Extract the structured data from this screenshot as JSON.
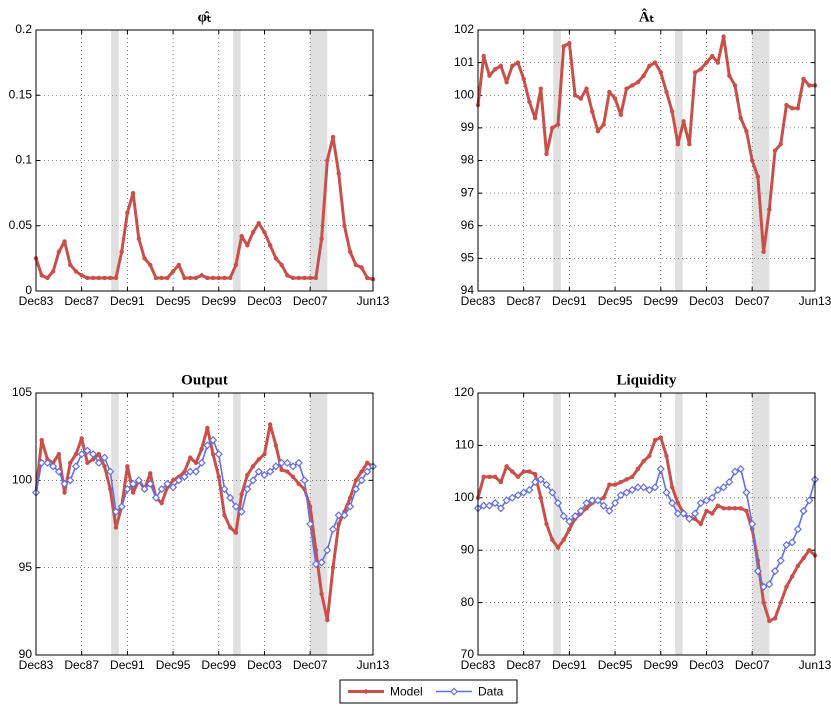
{
  "chart_data": [
    {
      "type": "line",
      "title": "φ̂ₜ",
      "color": "#c8504a",
      "marker": "dot",
      "x": [
        1983.917,
        1984.417,
        1984.917,
        1985.417,
        1985.917,
        1986.417,
        1986.917,
        1987.417,
        1987.917,
        1988.417,
        1988.917,
        1989.417,
        1989.917,
        1990.417,
        1990.917,
        1991.417,
        1991.917,
        1992.417,
        1992.917,
        1993.417,
        1993.917,
        1994.417,
        1994.917,
        1995.417,
        1995.917,
        1996.417,
        1996.917,
        1997.417,
        1997.917,
        1998.417,
        1998.917,
        1999.417,
        1999.917,
        2000.417,
        2000.917,
        2001.417,
        2001.917,
        2002.417,
        2002.917,
        2003.417,
        2003.917,
        2004.417,
        2004.917,
        2005.417,
        2005.917,
        2006.417,
        2006.917,
        2007.417,
        2007.917,
        2008.417,
        2008.917,
        2009.417,
        2009.917,
        2010.417,
        2010.917,
        2011.417,
        2011.917,
        2012.417,
        2012.917,
        2013.417
      ],
      "values": [
        0.025,
        0.012,
        0.01,
        0.015,
        0.03,
        0.038,
        0.02,
        0.015,
        0.012,
        0.01,
        0.01,
        0.01,
        0.01,
        0.01,
        0.01,
        0.03,
        0.06,
        0.075,
        0.04,
        0.025,
        0.02,
        0.01,
        0.01,
        0.01,
        0.015,
        0.02,
        0.01,
        0.01,
        0.01,
        0.012,
        0.01,
        0.01,
        0.01,
        0.01,
        0.01,
        0.02,
        0.042,
        0.035,
        0.045,
        0.052,
        0.045,
        0.035,
        0.025,
        0.02,
        0.012,
        0.01,
        0.01,
        0.01,
        0.01,
        0.01,
        0.04,
        0.1,
        0.118,
        0.09,
        0.05,
        0.03,
        0.02,
        0.018,
        0.01,
        0.009
      ],
      "xlim": [
        1983.917,
        2013.417
      ],
      "xticks": [
        {
          "value": 1983.917,
          "label": "Dec83"
        },
        {
          "value": 1987.917,
          "label": "Dec87"
        },
        {
          "value": 1991.917,
          "label": "Dec91"
        },
        {
          "value": 1995.917,
          "label": "Dec95"
        },
        {
          "value": 1999.917,
          "label": "Dec99"
        },
        {
          "value": 2003.917,
          "label": "Dec03"
        },
        {
          "value": 2007.917,
          "label": "Dec07"
        },
        {
          "value": 2013.417,
          "label": "Jun13"
        }
      ],
      "ylim": [
        0,
        0.2
      ],
      "yticks": [
        0,
        0.05,
        0.1,
        0.15,
        0.2
      ],
      "grid": true,
      "recessions": [
        [
          1990.5,
          1991.17
        ],
        [
          2001.17,
          2001.83
        ],
        [
          2007.92,
          2009.42
        ]
      ],
      "recession_color": "#e0e0e0"
    },
    {
      "type": "line",
      "title": "Âₜ",
      "color": "#c8504a",
      "marker": "dot",
      "x": [
        1983.917,
        1984.417,
        1984.917,
        1985.417,
        1985.917,
        1986.417,
        1986.917,
        1987.417,
        1987.917,
        1988.417,
        1988.917,
        1989.417,
        1989.917,
        1990.417,
        1990.917,
        1991.417,
        1991.917,
        1992.417,
        1992.917,
        1993.417,
        1993.917,
        1994.417,
        1994.917,
        1995.417,
        1995.917,
        1996.417,
        1996.917,
        1997.417,
        1997.917,
        1998.417,
        1998.917,
        1999.417,
        1999.917,
        2000.417,
        2000.917,
        2001.417,
        2001.917,
        2002.417,
        2002.917,
        2003.417,
        2003.917,
        2004.417,
        2004.917,
        2005.417,
        2005.917,
        2006.417,
        2006.917,
        2007.417,
        2007.917,
        2008.417,
        2008.917,
        2009.417,
        2009.917,
        2010.417,
        2010.917,
        2011.417,
        2011.917,
        2012.417,
        2012.917,
        2013.417
      ],
      "values": [
        99.7,
        101.2,
        100.6,
        100.8,
        100.9,
        100.4,
        100.9,
        101.0,
        100.5,
        99.8,
        99.3,
        100.2,
        98.2,
        99.0,
        99.1,
        101.5,
        101.6,
        100.0,
        99.9,
        100.2,
        99.5,
        98.9,
        99.1,
        100.1,
        99.9,
        99.4,
        100.2,
        100.3,
        100.4,
        100.6,
        100.9,
        101.0,
        100.7,
        100.1,
        99.5,
        98.5,
        99.2,
        98.5,
        100.7,
        100.8,
        101.0,
        101.2,
        101.0,
        101.8,
        100.6,
        100.3,
        99.3,
        98.9,
        98.0,
        97.5,
        95.2,
        96.5,
        98.3,
        98.5,
        99.7,
        99.6,
        99.6,
        100.5,
        100.3,
        100.3
      ],
      "xlim": [
        1983.917,
        2013.417
      ],
      "xticks": [
        {
          "value": 1983.917,
          "label": "Dec83"
        },
        {
          "value": 1987.917,
          "label": "Dec87"
        },
        {
          "value": 1991.917,
          "label": "Dec91"
        },
        {
          "value": 1995.917,
          "label": "Dec95"
        },
        {
          "value": 1999.917,
          "label": "Dec99"
        },
        {
          "value": 2003.917,
          "label": "Dec03"
        },
        {
          "value": 2007.917,
          "label": "Dec07"
        },
        {
          "value": 2013.417,
          "label": "Jun13"
        }
      ],
      "ylim": [
        94,
        102
      ],
      "yticks": [
        94,
        95,
        96,
        97,
        98,
        99,
        100,
        101,
        102
      ],
      "grid": true,
      "recessions": [
        [
          1990.5,
          1991.17
        ],
        [
          2001.17,
          2001.83
        ],
        [
          2007.92,
          2009.42
        ]
      ],
      "recession_color": "#e0e0e0"
    },
    {
      "type": "line",
      "title": "Output",
      "x": [
        1983.917,
        1984.417,
        1984.917,
        1985.417,
        1985.917,
        1986.417,
        1986.917,
        1987.417,
        1987.917,
        1988.417,
        1988.917,
        1989.417,
        1989.917,
        1990.417,
        1990.917,
        1991.417,
        1991.917,
        1992.417,
        1992.917,
        1993.417,
        1993.917,
        1994.417,
        1994.917,
        1995.417,
        1995.917,
        1996.417,
        1996.917,
        1997.417,
        1997.917,
        1998.417,
        1998.917,
        1999.417,
        1999.917,
        2000.417,
        2000.917,
        2001.417,
        2001.917,
        2002.417,
        2002.917,
        2003.417,
        2003.917,
        2004.417,
        2004.917,
        2005.417,
        2005.917,
        2006.417,
        2006.917,
        2007.417,
        2007.917,
        2008.417,
        2008.917,
        2009.417,
        2009.917,
        2010.417,
        2010.917,
        2011.417,
        2011.917,
        2012.417,
        2012.917,
        2013.417
      ],
      "series": [
        {
          "name": "Model",
          "color": "#c8504a",
          "marker": "dot",
          "values": [
            99.3,
            102.3,
            101.2,
            101.0,
            101.5,
            99.3,
            101.0,
            101.5,
            102.4,
            101.0,
            101.2,
            101.5,
            100.8,
            99.5,
            97.3,
            98.5,
            100.8,
            99.3,
            100.0,
            99.5,
            100.4,
            99.0,
            98.7,
            99.6,
            100.0,
            100.2,
            100.5,
            101.3,
            101.0,
            101.8,
            103.0,
            101.5,
            100.2,
            98.0,
            97.3,
            97.0,
            99.2,
            100.3,
            100.8,
            101.2,
            101.5,
            103.2,
            102.0,
            100.6,
            100.5,
            100.2,
            99.8,
            99.5,
            98.5,
            96.0,
            93.5,
            92.0,
            95.0,
            97.5,
            98.2,
            99.0,
            100.0,
            100.5,
            101.0,
            100.8
          ]
        },
        {
          "name": "Data",
          "color": "#6470e0",
          "marker": "diamond",
          "values": [
            99.3,
            101.0,
            101.0,
            100.8,
            100.5,
            99.8,
            100.0,
            100.8,
            101.5,
            101.7,
            101.5,
            101.0,
            101.3,
            100.5,
            98.2,
            98.5,
            99.5,
            99.8,
            100.0,
            99.5,
            99.8,
            99.0,
            99.5,
            99.8,
            99.6,
            100.0,
            100.2,
            100.5,
            100.5,
            101.0,
            102.0,
            102.3,
            101.5,
            99.5,
            99.0,
            98.5,
            98.2,
            99.5,
            100.0,
            100.5,
            100.3,
            100.5,
            100.8,
            101.0,
            101.0,
            100.8,
            101.0,
            100.0,
            97.5,
            95.2,
            95.3,
            96.0,
            97.2,
            98.0,
            98.0,
            98.5,
            99.5,
            100.0,
            100.5,
            100.8
          ]
        }
      ],
      "xlim": [
        1983.917,
        2013.417
      ],
      "xticks": [
        {
          "value": 1983.917,
          "label": "Dec83"
        },
        {
          "value": 1987.917,
          "label": "Dec87"
        },
        {
          "value": 1991.917,
          "label": "Dec91"
        },
        {
          "value": 1995.917,
          "label": "Dec95"
        },
        {
          "value": 1999.917,
          "label": "Dec99"
        },
        {
          "value": 2003.917,
          "label": "Dec03"
        },
        {
          "value": 2007.917,
          "label": "Dec07"
        },
        {
          "value": 2013.417,
          "label": "Jun13"
        }
      ],
      "ylim": [
        90,
        105
      ],
      "yticks": [
        90,
        95,
        100,
        105
      ],
      "grid": true,
      "recessions": [
        [
          1990.5,
          1991.17
        ],
        [
          2001.17,
          2001.83
        ],
        [
          2007.92,
          2009.42
        ]
      ],
      "recession_color": "#e0e0e0"
    },
    {
      "type": "line",
      "title": "Liquidity",
      "x": [
        1983.917,
        1984.417,
        1984.917,
        1985.417,
        1985.917,
        1986.417,
        1986.917,
        1987.417,
        1987.917,
        1988.417,
        1988.917,
        1989.417,
        1989.917,
        1990.417,
        1990.917,
        1991.417,
        1991.917,
        1992.417,
        1992.917,
        1993.417,
        1993.917,
        1994.417,
        1994.917,
        1995.417,
        1995.917,
        1996.417,
        1996.917,
        1997.417,
        1997.917,
        1998.417,
        1998.917,
        1999.417,
        1999.917,
        2000.417,
        2000.917,
        2001.417,
        2001.917,
        2002.417,
        2002.917,
        2003.417,
        2003.917,
        2004.417,
        2004.917,
        2005.417,
        2005.917,
        2006.417,
        2006.917,
        2007.417,
        2007.917,
        2008.417,
        2008.917,
        2009.417,
        2009.917,
        2010.417,
        2010.917,
        2011.417,
        2011.917,
        2012.417,
        2012.917,
        2013.417
      ],
      "series": [
        {
          "name": "Model",
          "color": "#c8504a",
          "marker": "dot",
          "values": [
            100,
            104,
            104,
            104,
            103,
            106,
            105,
            104,
            105,
            105,
            104.5,
            100,
            95,
            92,
            90.5,
            92,
            94,
            96,
            97,
            98,
            99,
            99.5,
            100,
            102.5,
            102.5,
            103,
            103.5,
            104,
            105.5,
            107,
            108,
            111,
            111.5,
            108,
            102,
            99,
            97,
            96,
            96,
            95,
            97.5,
            97,
            98.5,
            98,
            98,
            98,
            98,
            97.5,
            94,
            88,
            80,
            76.5,
            77,
            80,
            83,
            85,
            87,
            88.5,
            90,
            89
          ]
        },
        {
          "name": "Data",
          "color": "#6470e0",
          "marker": "diamond",
          "values": [
            98,
            98.5,
            98.5,
            99,
            98,
            99.5,
            100,
            100.5,
            101,
            101.5,
            103,
            103.5,
            102.5,
            101,
            99,
            96.5,
            95.5,
            96.5,
            97.5,
            99,
            99.5,
            99.5,
            98.5,
            97.5,
            99,
            100.5,
            101,
            101.5,
            102,
            102,
            101.5,
            102,
            105.5,
            101,
            99,
            97,
            97,
            96,
            97,
            99,
            99.5,
            100,
            101.5,
            102,
            103,
            105,
            105.5,
            101,
            95,
            86,
            83,
            83.5,
            86,
            88,
            91,
            91.5,
            94,
            97.5,
            99.5,
            103.5
          ]
        }
      ],
      "xlim": [
        1983.917,
        2013.417
      ],
      "xticks": [
        {
          "value": 1983.917,
          "label": "Dec83"
        },
        {
          "value": 1987.917,
          "label": "Dec87"
        },
        {
          "value": 1991.917,
          "label": "Dec91"
        },
        {
          "value": 1995.917,
          "label": "Dec95"
        },
        {
          "value": 1999.917,
          "label": "Dec99"
        },
        {
          "value": 2003.917,
          "label": "Dec03"
        },
        {
          "value": 2007.917,
          "label": "Dec07"
        },
        {
          "value": 2013.417,
          "label": "Jun13"
        }
      ],
      "ylim": [
        70,
        120
      ],
      "yticks": [
        70,
        80,
        90,
        100,
        110,
        120
      ],
      "grid": true,
      "recessions": [
        [
          1990.5,
          1991.17
        ],
        [
          2001.17,
          2001.83
        ],
        [
          2007.92,
          2009.42
        ]
      ],
      "recession_color": "#e0e0e0"
    }
  ]
}
